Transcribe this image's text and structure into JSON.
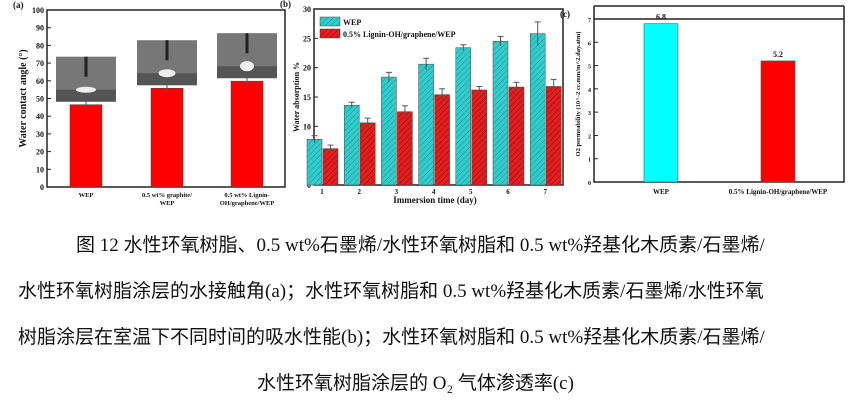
{
  "chart_data": [
    {
      "type": "bar",
      "panel": "(a)",
      "ylabel": "Water contact angle (°)",
      "ylim": [
        0,
        100
      ],
      "yticks": [
        0,
        10,
        20,
        30,
        40,
        50,
        60,
        70,
        80,
        90,
        100
      ],
      "categories": [
        [
          "WEP"
        ],
        [
          "0.5 wt% graphite/",
          "WEP"
        ],
        [
          "0.5 wt% Lignin-",
          "OH/graphene/WEP"
        ]
      ],
      "values": [
        46.5,
        55.8,
        59.8
      ],
      "errors": [
        3,
        2.5,
        3
      ],
      "color": "#ff0000"
    },
    {
      "type": "bar",
      "panel": "(b)",
      "xlabel": "Immersion time (day)",
      "ylabel": "Water absorption %",
      "ylim": [
        0,
        30
      ],
      "yticks": [
        0,
        5,
        10,
        15,
        20,
        25,
        30
      ],
      "categories": [
        "1",
        "2",
        "3",
        "4",
        "5",
        "6",
        "7"
      ],
      "legend": "top-left",
      "series": [
        {
          "name": "WEP",
          "color": "#33cccc",
          "values": [
            7.8,
            13.6,
            18.4,
            20.6,
            23.4,
            24.5,
            25.8
          ],
          "errors": [
            0.6,
            0.5,
            0.8,
            1.0,
            0.5,
            0.8,
            2.0
          ]
        },
        {
          "name": "0.5% Lignin-OH/graphene/WEP",
          "color": "#e02020",
          "values": [
            6.2,
            10.6,
            12.5,
            15.4,
            16.2,
            16.7,
            16.8
          ],
          "errors": [
            0.6,
            0.8,
            1.0,
            1.0,
            0.6,
            0.8,
            1.2
          ]
        }
      ]
    },
    {
      "type": "bar",
      "panel": "(c)",
      "ylabel": "O2 permeability (10^-2 cc.mm/m^2.day.atm)",
      "ylim": [
        0,
        7
      ],
      "yticks": [
        0,
        1,
        2,
        3,
        4,
        5,
        6,
        7
      ],
      "categories": [
        "WEP",
        "0.5% Lignin-OH/graphene/WEP"
      ],
      "values": [
        6.8,
        5.2
      ],
      "data_labels": [
        "6.8",
        "5.2"
      ],
      "colors": [
        "#00ffff",
        "#ff0000"
      ]
    }
  ],
  "caption": {
    "lines": [
      "图 12  水性环氧树脂、0.5 wt%石墨烯/水性环氧树脂和 0.5 wt%羟基化木质素/石墨烯/",
      "水性环氧树脂涂层的水接触角(a)；水性环氧树脂和 0.5 wt%羟基化木质素/石墨烯/水性环氧",
      "树脂涂层在室温下不同时间的吸水性能(b)；水性环氧树脂和 0.5 wt%羟基化木质素/石墨烯/",
      "水性环氧树脂涂层的 O₂ 气体渗透率(c)"
    ]
  }
}
